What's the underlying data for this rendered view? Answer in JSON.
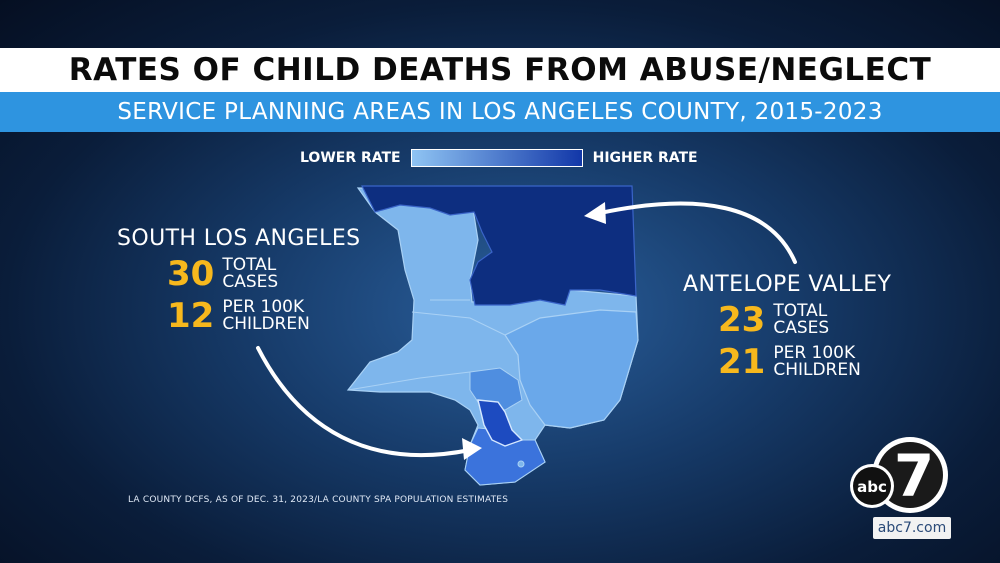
{
  "title": "RATES OF CHILD DEATHS FROM ABUSE/NEGLECT",
  "subtitle": "SERVICE PLANNING AREAS IN LOS ANGELES COUNTY, 2015-2023",
  "legend": {
    "low_label": "LOWER RATE",
    "high_label": "HIGHER RATE",
    "low_color": "#8fc4f3",
    "high_color": "#1237a8"
  },
  "south_la": {
    "name": "SOUTH LOS ANGELES",
    "total_cases": "30",
    "total_cases_label": [
      "TOTAL",
      "CASES"
    ],
    "rate": "12",
    "rate_label": [
      "PER 100K",
      "CHILDREN"
    ]
  },
  "antelope_valley": {
    "name": "ANTELOPE VALLEY",
    "total_cases": "23",
    "total_cases_label": [
      "TOTAL",
      "CASES"
    ],
    "rate": "21",
    "rate_label": [
      "PER 100K",
      "CHILDREN"
    ]
  },
  "source": "LA COUNTY DCFS, AS OF DEC. 31, 2023/LA COUNTY SPA POPULATION ESTIMATES",
  "logo": {
    "network": "abc",
    "channel": "7",
    "url": "abc7.com"
  },
  "colors": {
    "antelope_valley_region": "#0d2e80",
    "light_regions": "#7eb6ec",
    "mid_regions": "#5d9be3",
    "south_region": "#2e6ad6",
    "highlight_region": "#1d4bc0",
    "accent_number": "#f7b81d"
  }
}
